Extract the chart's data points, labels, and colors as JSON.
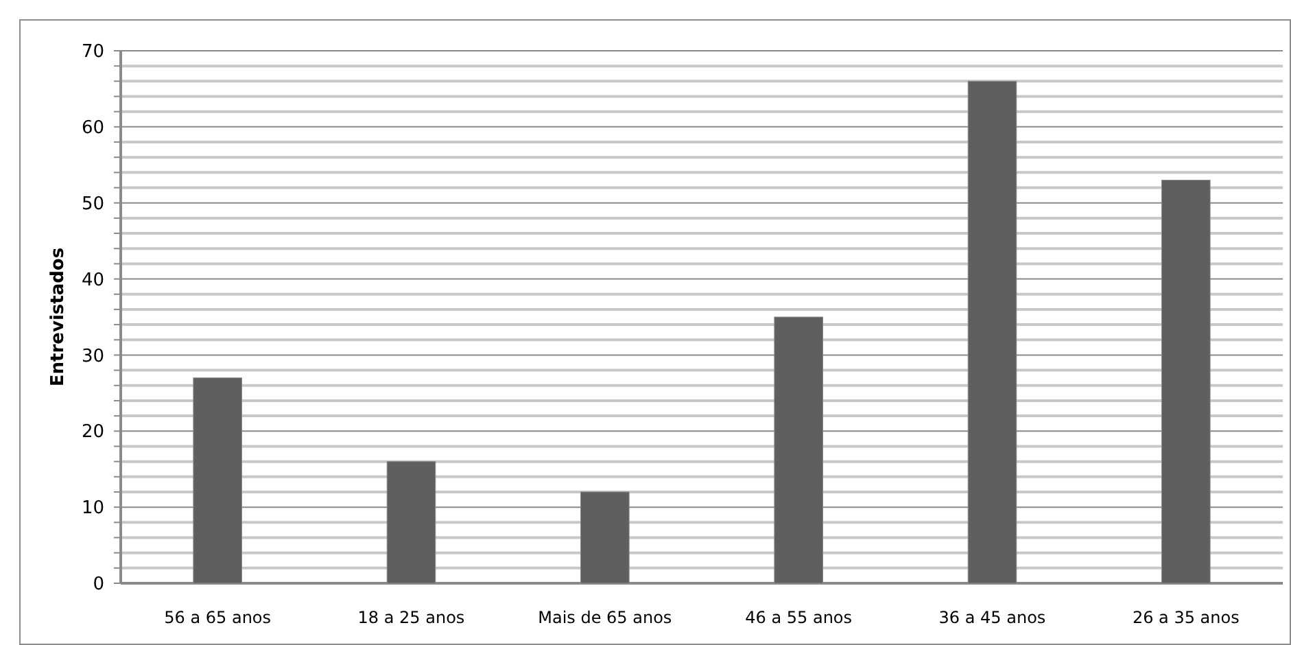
{
  "chart_data": {
    "type": "bar",
    "ylabel": "Entrevistados",
    "categories": [
      "56 a 65 anos",
      "18 a 25 anos",
      "Mais de 65 anos",
      "46 a 55 anos",
      "36 a 45 anos",
      "26 a 35 anos"
    ],
    "values": [
      27,
      16,
      12,
      35,
      66,
      53
    ],
    "color": "#5f5f5f",
    "ylim": [
      0,
      70
    ],
    "yticks": [
      0,
      {
        "value": 2,
        "label": null
      },
      {
        "value": 4,
        "label": null
      },
      {
        "value": 6,
        "label": null
      },
      {
        "value": 8,
        "label": null
      },
      10,
      {
        "value": 12,
        "label": null
      },
      {
        "value": 14,
        "label": null
      },
      {
        "value": 16,
        "label": null
      },
      {
        "value": 18,
        "label": null
      },
      20,
      {
        "value": 22,
        "label": null
      },
      {
        "value": 24,
        "label": null
      },
      {
        "value": 26,
        "label": null
      },
      {
        "value": 28,
        "label": null
      },
      30,
      {
        "value": 32,
        "label": null
      },
      {
        "value": 34,
        "label": null
      },
      {
        "value": 36,
        "label": null
      },
      {
        "value": 38,
        "label": null
      },
      40,
      {
        "value": 42,
        "label": null
      },
      {
        "value": 44,
        "label": null
      },
      {
        "value": 46,
        "label": null
      },
      {
        "value": 48,
        "label": null
      },
      50,
      {
        "value": 52,
        "label": null
      },
      {
        "value": 54,
        "label": null
      },
      {
        "value": 56,
        "label": null
      },
      {
        "value": 58,
        "label": null
      },
      60,
      {
        "value": 62,
        "label": null
      },
      {
        "value": 64,
        "label": null
      },
      {
        "value": 66,
        "label": null
      },
      {
        "value": 68,
        "label": null
      },
      70
    ],
    "grid": "y"
  }
}
